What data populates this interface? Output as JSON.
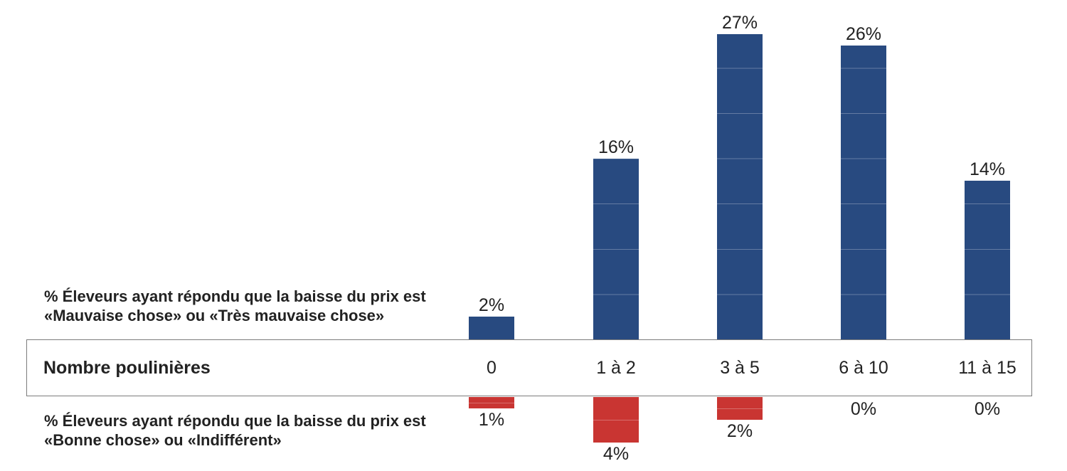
{
  "chart_data": {
    "type": "bar",
    "orientation": "diverging-vertical",
    "categories": [
      "0",
      "1 à 2",
      "3 à 5",
      "6 à 10",
      "11 à 15"
    ],
    "category_row_label": "Nombre poulinières",
    "series": [
      {
        "name": "% Éleveurs ayant répondu que la baisse du prix est «Mauvaise chose» ou «Très mauvaise chose»",
        "direction": "up",
        "color": "#284A80",
        "values": [
          2,
          16,
          27,
          26,
          14
        ],
        "labels": [
          "2%",
          "16%",
          "27%",
          "26%",
          "14%"
        ]
      },
      {
        "name": "% Éleveurs ayant répondu que la baisse du prix est «Bonne chose» ou «Indifférent»",
        "direction": "down",
        "color": "#C93532",
        "values": [
          1,
          4,
          2,
          0,
          0
        ],
        "labels": [
          "1%",
          "4%",
          "2%",
          "0%",
          "0%"
        ]
      }
    ],
    "unit": "%",
    "value_axis_visible": false,
    "gridlines": "faint white lines inside bars every 4%",
    "legend_position": "left of baseline rows"
  },
  "labels": {
    "blue_line1": "% Éleveurs ayant répondu que la baisse du prix est",
    "blue_line2": "«Mauvaise chose» ou «Très mauvaise chose»",
    "red_line1": "% Éleveurs ayant répondu que la baisse du prix est",
    "red_line2": "«Bonne chose» ou «Indifférent»",
    "table_row_label": "Nombre poulinières"
  },
  "colors": {
    "bar_up": "#284A80",
    "bar_down": "#C93532",
    "table_border": "#7C7C7C",
    "text": "#222222",
    "background": "#FFFFFF"
  }
}
